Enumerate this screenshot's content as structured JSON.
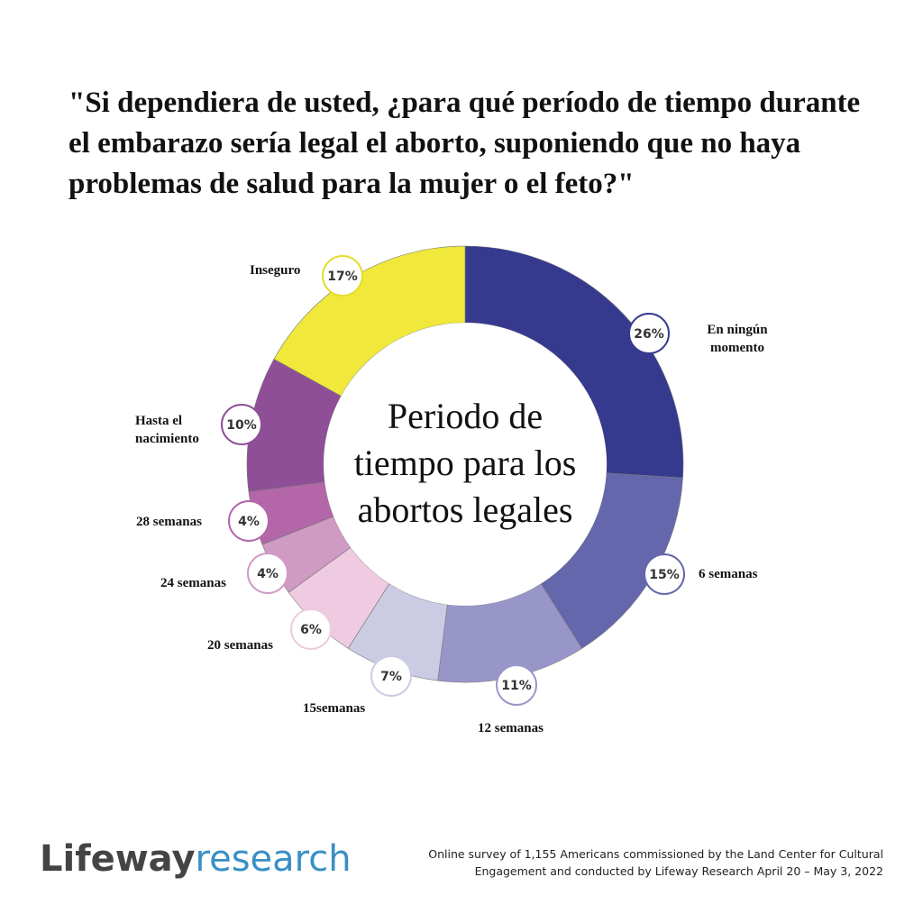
{
  "title": "\"Si dependiera de usted, ¿para qué período de tiempo durante el embarazo sería legal el aborto, suponiendo que no haya problemas de salud para la mujer o el feto?\"",
  "chart_data": {
    "type": "pie",
    "donut": true,
    "center_label": "Periodo de tiempo para los abortos legales",
    "slices": [
      {
        "label": "En ningún momento",
        "value": 26,
        "display": "26%",
        "color": "#363a8f"
      },
      {
        "label": "6 semanas",
        "value": 15,
        "display": "15%",
        "color": "#6467ab"
      },
      {
        "label": "12 semanas",
        "value": 11,
        "display": "11%",
        "color": "#9896c9"
      },
      {
        "label": "15semanas",
        "value": 7,
        "display": "7%",
        "color": "#cccbe4"
      },
      {
        "label": "20 semanas",
        "value": 6,
        "display": "6%",
        "color": "#eecbe0"
      },
      {
        "label": "24 semanas",
        "value": 4,
        "display": "4%",
        "color": "#cf9ac4"
      },
      {
        "label": "28 semanas",
        "value": 4,
        "display": "4%",
        "color": "#b366a8"
      },
      {
        "label": "Hasta el nacimiento",
        "value": 10,
        "display": "10%",
        "color": "#8e4f97"
      },
      {
        "label": "Inseguro",
        "value": 17,
        "display": "17%",
        "color": "#f0e83a"
      }
    ]
  },
  "footer": {
    "logo_part1": "Lifeway",
    "logo_part2": "research",
    "note": "Online survey of 1,155 Americans commissioned by the Land Center for Cultural Engagement and conducted by Lifeway Research April 20 – May 3, 2022"
  }
}
